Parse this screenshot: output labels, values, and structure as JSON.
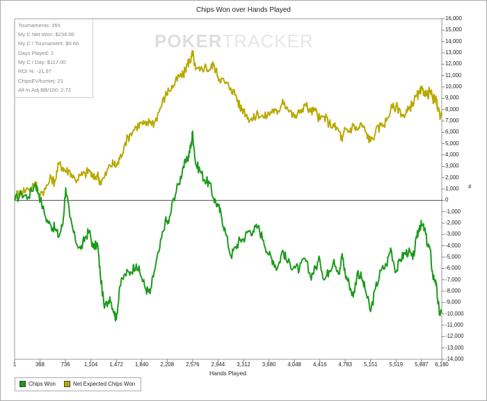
{
  "chart_data": {
    "type": "line",
    "title": "Chips Won over Hands Played",
    "xlabel": "Hands Played",
    "ylabel": "#",
    "xlim": [
      1,
      6180
    ],
    "ylim": [
      -14000,
      16000
    ],
    "x_ticks": [
      "1",
      "368",
      "736",
      "1,104",
      "1,472",
      "1,840",
      "2,208",
      "2,576",
      "2,944",
      "3,312",
      "3,680",
      "4,048",
      "4,416",
      "4,783",
      "5,151",
      "5,519",
      "5,887",
      "6,180"
    ],
    "y_ticks": [
      "16,000",
      "15,000",
      "14,000",
      "13,000",
      "12,000",
      "11,000",
      "10,000",
      "9,000",
      "8,000",
      "7,000",
      "6,000",
      "5,000",
      "4,000",
      "3,000",
      "2,000",
      "1,000",
      "0",
      "-1,000",
      "-2,000",
      "-3,000",
      "-4,000",
      "-5,000",
      "-6,000",
      "-7,000",
      "-8,000",
      "-9,000",
      "-10,000",
      "-11,000",
      "-12,000",
      "-13,000",
      "-14,000"
    ],
    "legend_position": "bottom-left",
    "grid": false,
    "series": [
      {
        "name": "Chips Won",
        "color": "#1a9a1a",
        "points": [
          [
            1,
            0
          ],
          [
            100,
            600
          ],
          [
            200,
            300
          ],
          [
            300,
            1500
          ],
          [
            350,
            600
          ],
          [
            450,
            -1500
          ],
          [
            530,
            -2300
          ],
          [
            580,
            -2400
          ],
          [
            640,
            -3200
          ],
          [
            700,
            -2000
          ],
          [
            740,
            1100
          ],
          [
            800,
            -1500
          ],
          [
            880,
            -3500
          ],
          [
            960,
            -4300
          ],
          [
            1020,
            -3300
          ],
          [
            1080,
            -2700
          ],
          [
            1140,
            -4200
          ],
          [
            1200,
            -3800
          ],
          [
            1240,
            -6500
          ],
          [
            1300,
            -9500
          ],
          [
            1380,
            -8500
          ],
          [
            1440,
            -9800
          ],
          [
            1472,
            -10500
          ],
          [
            1520,
            -7600
          ],
          [
            1600,
            -6500
          ],
          [
            1680,
            -6300
          ],
          [
            1760,
            -5600
          ],
          [
            1840,
            -6800
          ],
          [
            1900,
            -7800
          ],
          [
            1960,
            -8200
          ],
          [
            2020,
            -6300
          ],
          [
            2100,
            -4200
          ],
          [
            2180,
            -1800
          ],
          [
            2230,
            -2000
          ],
          [
            2300,
            200
          ],
          [
            2380,
            1500
          ],
          [
            2440,
            3000
          ],
          [
            2500,
            3500
          ],
          [
            2530,
            4300
          ],
          [
            2560,
            5000
          ],
          [
            2576,
            6100
          ],
          [
            2620,
            3200
          ],
          [
            2680,
            2700
          ],
          [
            2750,
            1800
          ],
          [
            2820,
            1500
          ],
          [
            2880,
            200
          ],
          [
            2944,
            -500
          ],
          [
            2990,
            -1300
          ],
          [
            3050,
            -2800
          ],
          [
            3130,
            -4900
          ],
          [
            3200,
            -4100
          ],
          [
            3260,
            -3500
          ],
          [
            3312,
            -3400
          ],
          [
            3380,
            -2700
          ],
          [
            3450,
            -2700
          ],
          [
            3520,
            -2300
          ],
          [
            3600,
            -3500
          ],
          [
            3680,
            -4800
          ],
          [
            3740,
            -5300
          ],
          [
            3800,
            -6000
          ],
          [
            3880,
            -4400
          ],
          [
            3950,
            -5500
          ],
          [
            4048,
            -5800
          ],
          [
            4120,
            -6100
          ],
          [
            4200,
            -5100
          ],
          [
            4280,
            -6700
          ],
          [
            4350,
            -6000
          ],
          [
            4416,
            -5200
          ],
          [
            4480,
            -7000
          ],
          [
            4550,
            -6200
          ],
          [
            4620,
            -5200
          ],
          [
            4700,
            -6500
          ],
          [
            4740,
            -4700
          ],
          [
            4783,
            -6500
          ],
          [
            4840,
            -7300
          ],
          [
            4900,
            -8500
          ],
          [
            4960,
            -6300
          ],
          [
            5020,
            -6800
          ],
          [
            5080,
            -8000
          ],
          [
            5151,
            -9800
          ],
          [
            5220,
            -7800
          ],
          [
            5300,
            -6200
          ],
          [
            5380,
            -5700
          ],
          [
            5440,
            -4200
          ],
          [
            5519,
            -6300
          ],
          [
            5580,
            -5200
          ],
          [
            5640,
            -4700
          ],
          [
            5700,
            -4500
          ],
          [
            5760,
            -5200
          ],
          [
            5820,
            -3300
          ],
          [
            5860,
            -2200
          ],
          [
            5887,
            -2200
          ],
          [
            5930,
            -2500
          ],
          [
            5970,
            -3800
          ],
          [
            6010,
            -4300
          ],
          [
            6050,
            -6700
          ],
          [
            6090,
            -7000
          ],
          [
            6120,
            -8700
          ],
          [
            6150,
            -10000
          ],
          [
            6180,
            -9800
          ]
        ]
      },
      {
        "name": "Net Expected Chips Won",
        "color": "#b8a800",
        "points": [
          [
            1,
            400
          ],
          [
            100,
            800
          ],
          [
            200,
            1000
          ],
          [
            300,
            1600
          ],
          [
            350,
            600
          ],
          [
            450,
            1000
          ],
          [
            530,
            2000
          ],
          [
            580,
            1600
          ],
          [
            640,
            3200
          ],
          [
            700,
            2900
          ],
          [
            740,
            2600
          ],
          [
            800,
            2600
          ],
          [
            880,
            1800
          ],
          [
            960,
            2200
          ],
          [
            1020,
            2300
          ],
          [
            1080,
            2700
          ],
          [
            1140,
            1900
          ],
          [
            1200,
            2300
          ],
          [
            1240,
            1600
          ],
          [
            1300,
            2000
          ],
          [
            1380,
            3100
          ],
          [
            1440,
            3200
          ],
          [
            1472,
            3000
          ],
          [
            1520,
            3600
          ],
          [
            1600,
            5100
          ],
          [
            1680,
            5900
          ],
          [
            1760,
            6500
          ],
          [
            1840,
            6800
          ],
          [
            1900,
            6600
          ],
          [
            1960,
            7000
          ],
          [
            2020,
            6800
          ],
          [
            2100,
            8000
          ],
          [
            2180,
            9200
          ],
          [
            2230,
            9700
          ],
          [
            2300,
            10100
          ],
          [
            2380,
            10900
          ],
          [
            2440,
            11000
          ],
          [
            2500,
            12000
          ],
          [
            2530,
            12300
          ],
          [
            2560,
            12600
          ],
          [
            2576,
            13000
          ],
          [
            2620,
            11500
          ],
          [
            2680,
            11400
          ],
          [
            2750,
            11800
          ],
          [
            2820,
            11500
          ],
          [
            2880,
            12000
          ],
          [
            2944,
            10900
          ],
          [
            2990,
            10700
          ],
          [
            3050,
            10300
          ],
          [
            3130,
            9900
          ],
          [
            3200,
            9300
          ],
          [
            3260,
            8200
          ],
          [
            3312,
            8000
          ],
          [
            3380,
            7300
          ],
          [
            3450,
            7100
          ],
          [
            3520,
            7700
          ],
          [
            3600,
            7300
          ],
          [
            3680,
            7600
          ],
          [
            3740,
            8000
          ],
          [
            3800,
            7600
          ],
          [
            3880,
            8900
          ],
          [
            3950,
            8100
          ],
          [
            4048,
            7300
          ],
          [
            4120,
            7700
          ],
          [
            4200,
            8500
          ],
          [
            4280,
            7800
          ],
          [
            4350,
            7900
          ],
          [
            4416,
            7100
          ],
          [
            4480,
            7400
          ],
          [
            4550,
            6800
          ],
          [
            4620,
            6500
          ],
          [
            4700,
            6100
          ],
          [
            4740,
            5200
          ],
          [
            4783,
            6300
          ],
          [
            4840,
            6100
          ],
          [
            4900,
            6600
          ],
          [
            4960,
            6200
          ],
          [
            5020,
            6700
          ],
          [
            5080,
            6000
          ],
          [
            5151,
            5200
          ],
          [
            5220,
            6000
          ],
          [
            5300,
            6600
          ],
          [
            5380,
            7000
          ],
          [
            5440,
            8000
          ],
          [
            5519,
            8300
          ],
          [
            5580,
            7900
          ],
          [
            5640,
            7300
          ],
          [
            5700,
            8000
          ],
          [
            5760,
            8600
          ],
          [
            5820,
            9200
          ],
          [
            5860,
            9400
          ],
          [
            5887,
            9700
          ],
          [
            5930,
            9600
          ],
          [
            5970,
            9200
          ],
          [
            6010,
            9700
          ],
          [
            6050,
            8900
          ],
          [
            6090,
            8900
          ],
          [
            6120,
            8300
          ],
          [
            6150,
            7600
          ],
          [
            6180,
            7500
          ]
        ]
      }
    ]
  },
  "stats": [
    "Tournaments: 355",
    "My C Net Won: $234.00",
    "My C / Tournament: $0.66",
    "Days Played: 2",
    "My C / Day: $117.00",
    "ROI %: -21.97",
    "ChipsEV/turniej: 21",
    "All-In Adj BB/100: 2.72"
  ],
  "watermark": {
    "part1": "POKER",
    "part2": "TRACKER"
  }
}
